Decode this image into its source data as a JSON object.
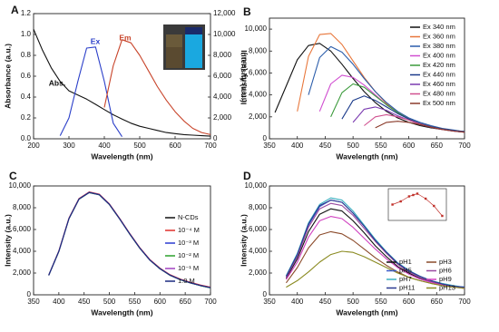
{
  "chart_data": [
    {
      "type": "line",
      "label": "A",
      "xlabel": "Wavelength (nm)",
      "ylabel": "Absorbance (a.u.)",
      "y2label": "Intensity (a.u.)",
      "legend": "none",
      "x": [
        200,
        225,
        250,
        275,
        300,
        325,
        350,
        375,
        400,
        425,
        450,
        475,
        500,
        525,
        550,
        575,
        600,
        625,
        650,
        675,
        700
      ],
      "xlim": [
        200,
        700
      ],
      "xticks": [
        200,
        300,
        400,
        500,
        600,
        700
      ],
      "ylim": [
        0,
        1.2
      ],
      "yticks": [
        {
          "value": 0,
          "label": "0.0"
        },
        0.2,
        0.4,
        0.6,
        0.8,
        {
          "value": 1,
          "label": "1.0"
        },
        1.2
      ],
      "y2lim": [
        0,
        12000
      ],
      "y2ticks": [
        0,
        {
          "value": 2000,
          "label": "2,000"
        },
        {
          "value": 4000,
          "label": "4,000"
        },
        {
          "value": 6000,
          "label": "6,000"
        },
        {
          "value": 8000,
          "label": "8,000"
        },
        {
          "value": 10000,
          "label": "10,000"
        },
        {
          "value": 12000,
          "label": "12,000"
        }
      ],
      "series": [
        {
          "name": "Abs.",
          "color": "#111111",
          "values": [
            1.05,
            0.85,
            0.68,
            0.55,
            0.46,
            0.42,
            0.38,
            0.33,
            0.28,
            0.23,
            0.19,
            0.15,
            0.12,
            0.1,
            0.08,
            0.06,
            0.05,
            0.04,
            0.035,
            0.03,
            0.025
          ]
        },
        {
          "name": "Ex",
          "color": "#2b3fc9",
          "axis": "y2",
          "values": [
            null,
            null,
            null,
            300,
            2000,
            5500,
            8700,
            8800,
            5500,
            1500,
            200,
            null,
            null,
            null,
            null,
            null,
            null,
            null,
            null,
            null,
            null
          ]
        },
        {
          "name": "Em",
          "color": "#c8442a",
          "axis": "y2",
          "values": [
            null,
            null,
            null,
            null,
            null,
            null,
            null,
            null,
            3000,
            7000,
            9500,
            9200,
            8000,
            6500,
            5000,
            3700,
            2600,
            1700,
            1000,
            600,
            400
          ]
        }
      ]
    },
    {
      "type": "line",
      "label": "B",
      "xlabel": "Wavelength (nm)",
      "ylabel": "Intensity (a.u.)",
      "legend": "upper right",
      "x": [
        360,
        380,
        400,
        420,
        440,
        460,
        480,
        500,
        520,
        540,
        560,
        580,
        600,
        620,
        640,
        660,
        680,
        700
      ],
      "xlim": [
        350,
        700
      ],
      "xticks": [
        350,
        400,
        450,
        500,
        550,
        600,
        650,
        700
      ],
      "ylim": [
        0,
        11000
      ],
      "yticks": [
        0,
        {
          "value": 2000,
          "label": "2,000"
        },
        {
          "value": 4000,
          "label": "4,000"
        },
        {
          "value": 6000,
          "label": "6,000"
        },
        {
          "value": 8000,
          "label": "8,000"
        },
        {
          "value": 10000,
          "label": "10,000"
        }
      ],
      "series": [
        {
          "name": "Ex 340 nm",
          "color": "#111111",
          "values": [
            2400,
            4800,
            7200,
            8500,
            8700,
            8000,
            6800,
            5500,
            4300,
            3300,
            2500,
            1900,
            1500,
            1200,
            1000,
            850,
            700,
            600
          ]
        },
        {
          "name": "Ex 360 nm",
          "color": "#e8763a",
          "values": [
            null,
            null,
            2500,
            7500,
            9500,
            9600,
            8600,
            7100,
            5600,
            4300,
            3200,
            2400,
            1800,
            1400,
            1100,
            900,
            750,
            650
          ]
        },
        {
          "name": "Ex 380 nm",
          "color": "#2a5caa",
          "values": [
            null,
            null,
            null,
            4000,
            7400,
            8400,
            7900,
            6800,
            5500,
            4300,
            3300,
            2500,
            1900,
            1500,
            1200,
            950,
            800,
            650
          ]
        },
        {
          "name": "Ex 400 nm",
          "color": "#d04ed0",
          "values": [
            null,
            null,
            null,
            null,
            2500,
            5000,
            5800,
            5600,
            4900,
            4000,
            3100,
            2400,
            1800,
            1400,
            1100,
            900,
            750,
            650
          ]
        },
        {
          "name": "Ex 420 nm",
          "color": "#3a9a3a",
          "values": [
            null,
            null,
            null,
            null,
            null,
            2000,
            4200,
            5000,
            4700,
            3900,
            3100,
            2400,
            1800,
            1400,
            1100,
            900,
            750,
            650
          ]
        },
        {
          "name": "Ex 440 nm",
          "color": "#1a3a8a",
          "values": [
            null,
            null,
            null,
            null,
            null,
            null,
            1800,
            3500,
            3900,
            3500,
            2900,
            2300,
            1800,
            1400,
            1100,
            900,
            750,
            650
          ]
        },
        {
          "name": "Ex 460 nm",
          "color": "#7a3ab0",
          "values": [
            null,
            null,
            null,
            null,
            null,
            null,
            null,
            1500,
            2700,
            2900,
            2600,
            2100,
            1700,
            1300,
            1050,
            850,
            700,
            600
          ]
        },
        {
          "name": "Ex 480 nm",
          "color": "#d0508f",
          "values": [
            null,
            null,
            null,
            null,
            null,
            null,
            null,
            null,
            1200,
            2000,
            2200,
            2000,
            1700,
            1350,
            1050,
            850,
            700,
            600
          ]
        },
        {
          "name": "Ex 500 nm",
          "color": "#8a3a2a",
          "values": [
            null,
            null,
            null,
            null,
            null,
            null,
            null,
            null,
            null,
            1000,
            1500,
            1600,
            1500,
            1300,
            1050,
            850,
            700,
            600
          ]
        }
      ]
    },
    {
      "type": "line",
      "label": "C",
      "xlabel": "Wavelength (nm)",
      "ylabel": "Intensity (a.u.)",
      "legend": "right",
      "x": [
        380,
        400,
        420,
        440,
        460,
        480,
        500,
        520,
        540,
        560,
        580,
        600,
        620,
        640,
        660,
        680,
        700
      ],
      "xlim": [
        350,
        700
      ],
      "xticks": [
        350,
        400,
        450,
        500,
        550,
        600,
        650,
        700
      ],
      "ylim": [
        0,
        10000
      ],
      "yticks": [
        0,
        {
          "value": 2000,
          "label": "2,000"
        },
        {
          "value": 4000,
          "label": "4,000"
        },
        {
          "value": 6000,
          "label": "6,000"
        },
        {
          "value": 8000,
          "label": "8,000"
        },
        {
          "value": 10000,
          "label": "10,000"
        }
      ],
      "series": [
        {
          "name": "N-CDs",
          "color": "#111111",
          "values": [
            1800,
            4000,
            7000,
            8800,
            9400,
            9200,
            8300,
            7000,
            5600,
            4300,
            3200,
            2400,
            1800,
            1400,
            1100,
            850,
            650
          ]
        },
        {
          "name": "10⁻⁴ M",
          "color": "#e0302a",
          "values": [
            1800,
            4050,
            7050,
            8850,
            9450,
            9250,
            8350,
            7050,
            5650,
            4350,
            3250,
            2450,
            1850,
            1450,
            1150,
            900,
            700
          ]
        },
        {
          "name": "10⁻³ M",
          "color": "#2a3ad0",
          "values": [
            1780,
            3980,
            6980,
            8780,
            9380,
            9180,
            8280,
            6980,
            5580,
            4280,
            3180,
            2380,
            1780,
            1380,
            1080,
            840,
            640
          ]
        },
        {
          "name": "10⁻² M",
          "color": "#2aa02a",
          "values": [
            1790,
            3990,
            6990,
            8790,
            9390,
            9190,
            8290,
            6990,
            5590,
            4290,
            3190,
            2390,
            1790,
            1390,
            1090,
            845,
            645
          ]
        },
        {
          "name": "10⁻¹ M",
          "color": "#a040c0",
          "values": [
            1810,
            4020,
            7020,
            8820,
            9420,
            9220,
            8320,
            7020,
            5620,
            4320,
            3220,
            2420,
            1820,
            1420,
            1120,
            870,
            670
          ]
        },
        {
          "name": "1.0 M",
          "color": "#1a2a80",
          "values": [
            1800,
            4010,
            7010,
            8810,
            9410,
            9210,
            8310,
            7010,
            5610,
            4310,
            3210,
            2410,
            1810,
            1410,
            1110,
            860,
            660
          ]
        }
      ]
    },
    {
      "type": "line",
      "label": "D",
      "xlabel": "Wavelength (nm)",
      "ylabel": "Intensity (a.u.)",
      "legend": "lower right",
      "x": [
        380,
        400,
        420,
        440,
        460,
        480,
        500,
        520,
        540,
        560,
        580,
        600,
        620,
        640,
        660,
        680,
        700
      ],
      "xlim": [
        350,
        700
      ],
      "xticks": [
        350,
        400,
        450,
        500,
        550,
        600,
        650,
        700
      ],
      "ylim": [
        0,
        10000
      ],
      "yticks": [
        0,
        {
          "value": 2000,
          "label": "2,000"
        },
        {
          "value": 4000,
          "label": "4,000"
        },
        {
          "value": 6000,
          "label": "6,000"
        },
        {
          "value": 8000,
          "label": "8,000"
        },
        {
          "value": 10000,
          "label": "10,000"
        }
      ],
      "series": [
        {
          "name": "pH1",
          "color": "#111111",
          "values": [
            1500,
            3300,
            5800,
            7400,
            7900,
            7700,
            6800,
            5700,
            4500,
            3500,
            2600,
            2000,
            1500,
            1200,
            950,
            750,
            650
          ]
        },
        {
          "name": "pH3",
          "color": "#8b4a2a",
          "values": [
            1100,
            2500,
            4300,
            5500,
            5800,
            5600,
            5000,
            4200,
            3400,
            2700,
            2100,
            1600,
            1300,
            1050,
            850,
            700,
            600
          ]
        },
        {
          "name": "pH5",
          "color": "#3a5ac8",
          "values": [
            1700,
            3700,
            6400,
            8100,
            8700,
            8500,
            7500,
            6300,
            5000,
            3900,
            2900,
            2200,
            1700,
            1300,
            1000,
            800,
            700
          ]
        },
        {
          "name": "pH6",
          "color": "#9a4aa0",
          "values": [
            1600,
            3500,
            6200,
            7900,
            8400,
            8200,
            7300,
            6100,
            4900,
            3800,
            2800,
            2100,
            1600,
            1250,
            1000,
            800,
            650
          ]
        },
        {
          "name": "pH7",
          "color": "#3ab0c0",
          "values": [
            1750,
            3800,
            6600,
            8300,
            8900,
            8700,
            7700,
            6400,
            5100,
            3950,
            2950,
            2250,
            1700,
            1300,
            1050,
            850,
            700
          ]
        },
        {
          "name": "pH9",
          "color": "#d040c0",
          "values": [
            1400,
            3000,
            5300,
            6800,
            7200,
            7000,
            6200,
            5200,
            4200,
            3300,
            2500,
            1900,
            1450,
            1150,
            900,
            750,
            600
          ]
        },
        {
          "name": "pH11",
          "color": "#2a3a90",
          "values": [
            1700,
            3700,
            6500,
            8200,
            8700,
            8500,
            7500,
            6300,
            5000,
            3900,
            2900,
            2200,
            1700,
            1300,
            1000,
            800,
            700
          ]
        },
        {
          "name": "pH13",
          "color": "#8a8a20",
          "values": [
            700,
            1300,
            2100,
            3000,
            3700,
            4000,
            3900,
            3500,
            3000,
            2500,
            2000,
            1600,
            1300,
            1050,
            850,
            700,
            600
          ]
        }
      ]
    },
    {
      "type": "line",
      "markers": true,
      "legend": "none",
      "x": [
        1,
        3,
        5,
        6,
        7,
        9,
        11,
        13
      ],
      "xlim": [
        0,
        14
      ],
      "ylim": [
        3000,
        10000
      ],
      "series": [
        {
          "color": "#c0302a",
          "values": [
            6500,
            7200,
            8300,
            8600,
            8900,
            7800,
            6200,
            4000
          ]
        }
      ]
    }
  ]
}
